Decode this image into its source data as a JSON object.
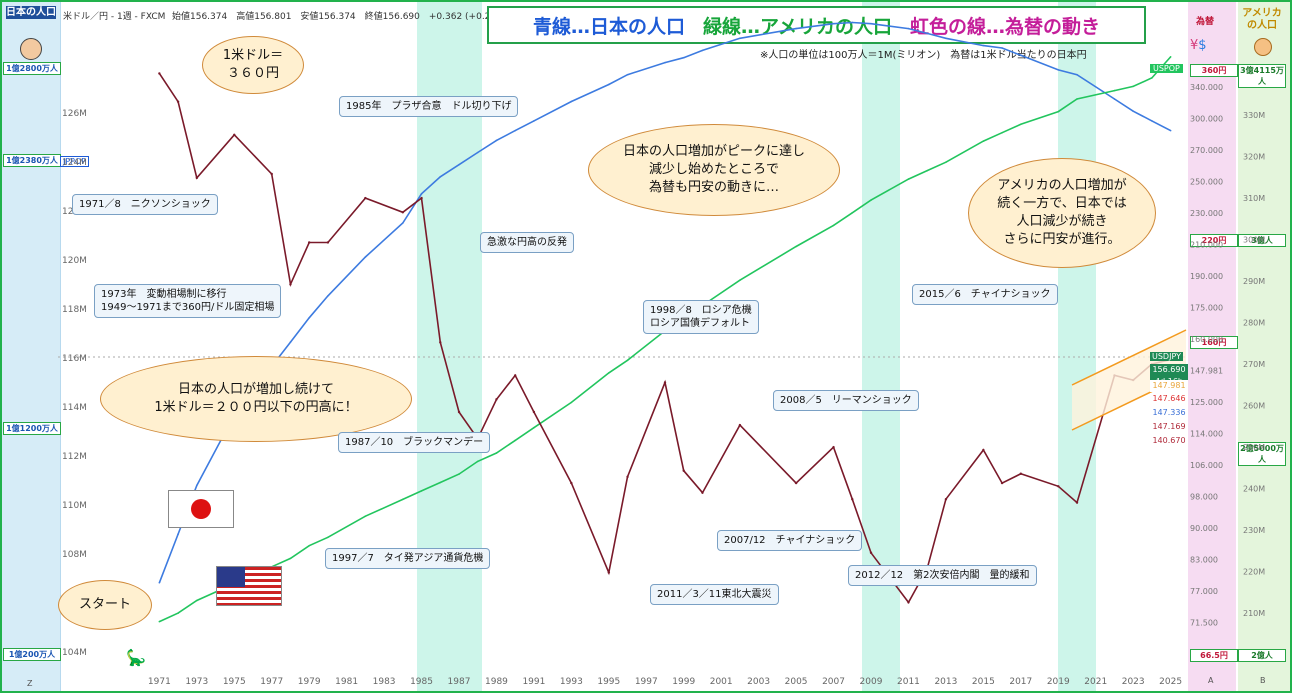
{
  "header": {
    "instrument": "米ドル／円 - 1週 - FXCM",
    "ohlc": "始値156.374　高値156.801　安値156.374　終値156.690　+0.362 (+0.23%)",
    "title_blue": "青線…日本の人口",
    "title_green": "緑線…アメリカの人口",
    "title_rainbow": "虹色の線…為替の動き",
    "subnote": "※人口の単位は100万人＝1M(ミリオン)　為替は1米ドル当たりの日本円"
  },
  "left_panel": {
    "heading": "日本の人口",
    "labels": [
      "1億2800万人",
      "1億2380万人",
      "1億1200万人",
      "1億200万人"
    ],
    "series_tag": "JPPOP",
    "footer": "Z"
  },
  "right_panel_a": {
    "heading": "為替",
    "labels": [
      "360円",
      "220円",
      "160円",
      "66.5円"
    ],
    "footer": "A"
  },
  "right_panel_b": {
    "heading": "アメリカの人口",
    "labels": [
      "3億4115万人",
      "3億人",
      "2億5000万人",
      "2億人"
    ],
    "footer": "B"
  },
  "price_tags": {
    "uspop": "USPOP",
    "usdjpy": "USDJPY",
    "last": "156.690",
    "countdown": "4d 16h",
    "levels": [
      "147.981",
      "147.646",
      "147.336",
      "147.169",
      "140.670"
    ]
  },
  "bubbles": {
    "b1": "1米ドル＝\n３６０円",
    "b2": "日本の人口増加がピークに達し\n減少し始めたところで\n為替も円安の動きに…",
    "b3": "アメリカの人口増加が\n続く一方で、日本では\n人口減少が続き\nさらに円安が進行。",
    "b4": "日本の人口が増加し続けて\n1米ドル＝２００円以下の円高に！",
    "b5": "スタート"
  },
  "callouts": {
    "c1": "1971／8　ニクソンショック",
    "c2": "1973年　変動相場制に移行\n1949〜1971まで360円/ドル固定相場",
    "c3": "1985年　プラザ合意　ドル切り下げ",
    "c4": "急激な円高の反発",
    "c5": "1987／10　ブラックマンデー",
    "c6": "1998／8　ロシア危機\nロシア国債デフォルト",
    "c7": "1997／7　タイ発アジア通貨危機",
    "c8": "2008／5　リーマンショック",
    "c9": "2007/12　チャイナショック",
    "c10": "2011／3／11東北大震災",
    "c11": "2012／12　第2次安倍内閣　量的緩和",
    "c12": "2015／6　チャイナショック"
  },
  "chart_data": {
    "type": "line",
    "title": "青線…日本の人口　緑線…アメリカの人口　虹色の線…為替の動き",
    "x_ticks": [
      "1971",
      "1973",
      "1975",
      "1977",
      "1979",
      "1981",
      "1983",
      "1985",
      "1987",
      "1989",
      "1991",
      "1993",
      "1995",
      "1997",
      "1999",
      "2001",
      "2003",
      "2005",
      "2007",
      "2009",
      "2011",
      "2013",
      "2015",
      "2017",
      "2019",
      "2021",
      "2023",
      "2025"
    ],
    "left_axis_ticks": [
      "126M",
      "124M",
      "122M",
      "120M",
      "118M",
      "116M",
      "114M",
      "112M",
      "110M",
      "108M",
      "106M",
      "104M"
    ],
    "right_axis_ticks": [
      "340.000",
      "300.000",
      "270.000",
      "250.000",
      "230.000",
      "210.000",
      "190.000",
      "175.000",
      "160.000",
      "147.981",
      "125.000",
      "114.000",
      "106.000",
      "98.000",
      "90.000",
      "83.000",
      "77.000",
      "71.500"
    ],
    "right_pop_ticks": [
      "330M",
      "320M",
      "310M",
      "300M",
      "290M",
      "280M",
      "270M",
      "260M",
      "250M",
      "240M",
      "230M",
      "220M",
      "210M"
    ],
    "x": [
      1971,
      1972,
      1973,
      1975,
      1977,
      1978,
      1979,
      1980,
      1982,
      1984,
      1985,
      1986,
      1987,
      1988,
      1989,
      1990,
      1991,
      1993,
      1995,
      1996,
      1998,
      1999,
      2000,
      2002,
      2005,
      2007,
      2008,
      2009,
      2011,
      2012,
      2013,
      2015,
      2016,
      2017,
      2019,
      2020,
      2022,
      2023,
      2024,
      2025
    ],
    "series": [
      {
        "name": "日本の人口",
        "color": "#3d7be0",
        "values": [
          105,
          107,
          109,
          111.9,
          113.9,
          114.9,
          115.9,
          116.8,
          118.4,
          119.8,
          121,
          121.7,
          122.2,
          122.7,
          123.2,
          123.6,
          124,
          124.8,
          125.5,
          125.9,
          126.4,
          126.6,
          126.9,
          127.4,
          127.8,
          128,
          128.05,
          128,
          127.8,
          127.6,
          127.4,
          127.1,
          127,
          126.7,
          126.1,
          125.9,
          124.9,
          124.4,
          124,
          123.6
        ]
      },
      {
        "name": "アメリカの人口",
        "color": "#22c55e",
        "values": [
          207,
          209,
          212,
          216,
          220,
          222,
          225,
          227,
          232,
          236,
          238,
          240,
          242,
          245,
          247,
          250,
          253,
          259,
          266,
          269,
          276,
          279,
          282,
          288,
          296,
          301,
          304,
          307,
          312,
          314,
          316,
          321,
          323,
          325,
          328,
          331,
          333,
          334,
          336,
          341
        ]
      },
      {
        "name": "為替 USDJPY",
        "color": "#7a1a2a",
        "values": [
          358,
          330,
          265,
          300,
          268,
          195,
          220,
          220,
          250,
          240,
          250,
          165,
          135,
          125,
          140,
          150,
          135,
          110,
          85,
          112,
          147,
          114,
          107,
          130,
          110,
          122,
          105,
          90,
          78,
          86,
          105,
          121,
          110,
          113,
          109,
          104,
          150,
          148,
          155,
          157
        ]
      }
    ]
  }
}
